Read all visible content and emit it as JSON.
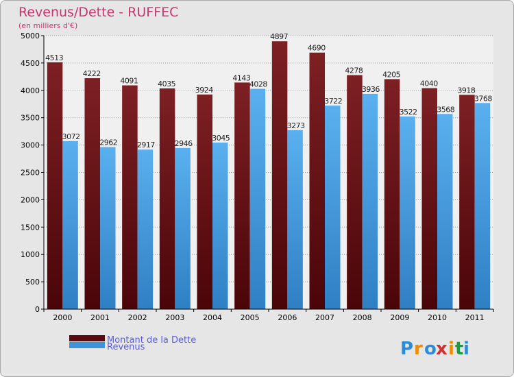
{
  "chart_data": {
    "type": "bar",
    "title": "Revenus/Dette - RUFFEC",
    "subtitle": "(en milliers d'€)",
    "categories": [
      "2000",
      "2001",
      "2002",
      "2003",
      "2004",
      "2005",
      "2006",
      "2007",
      "2008",
      "2009",
      "2010",
      "2011"
    ],
    "series": [
      {
        "name": "Montant de la Dette",
        "color": "#6b0f12",
        "values": [
          4513,
          4222,
          4091,
          4035,
          3924,
          4143,
          4897,
          4690,
          4278,
          4205,
          4040,
          3918
        ]
      },
      {
        "name": "Revenus",
        "color": "#3d94d9",
        "values": [
          3072,
          2962,
          2917,
          2946,
          3045,
          4028,
          3273,
          3722,
          3936,
          3522,
          3568,
          3768
        ]
      }
    ],
    "ylim": [
      0,
      5000
    ],
    "yticks": [
      0,
      500,
      1000,
      1500,
      2000,
      2500,
      3000,
      3500,
      4000,
      4500,
      5000
    ],
    "grid": true,
    "legend_position": "bottom-left"
  },
  "logo": {
    "text": "Proxiti",
    "letters": [
      "P",
      "r",
      "o",
      "x",
      "i",
      "t",
      "i"
    ],
    "colors": [
      "#2e8bd6",
      "#f08a00",
      "#2e8bd6",
      "#d62e2e",
      "#f08a00",
      "#1a9c3e",
      "#2e8bd6"
    ]
  }
}
